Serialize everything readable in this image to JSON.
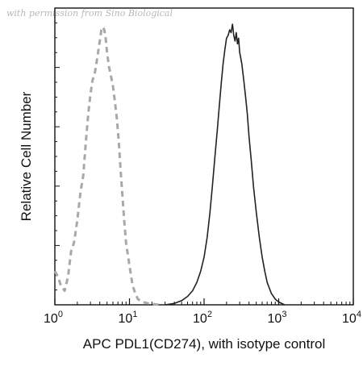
{
  "watermark": "with permission from Sino Biological",
  "chart_data": {
    "type": "line",
    "xlabel": "APC PDL1(CD274), with isotype control",
    "ylabel": "Relative Cell Number",
    "x_scale": "log",
    "xlim": [
      1,
      10000
    ],
    "ylim": [
      0,
      1
    ],
    "x_ticks": [
      {
        "base": "10",
        "exp": "0",
        "value": 1
      },
      {
        "base": "10",
        "exp": "1",
        "value": 10
      },
      {
        "base": "10",
        "exp": "2",
        "value": 100
      },
      {
        "base": "10",
        "exp": "3",
        "value": 1000
      },
      {
        "base": "10",
        "exp": "4",
        "value": 10000
      }
    ],
    "grid": false,
    "legend": "none",
    "series": [
      {
        "style": "dashed",
        "color": "#a8a8a8",
        "x": [
          1.0,
          1.1,
          1.2,
          1.35,
          1.5,
          1.65,
          1.8,
          2.0,
          2.2,
          2.4,
          2.6,
          2.8,
          3.0,
          3.2,
          3.4,
          3.6,
          3.8,
          4.0,
          4.2,
          4.4,
          4.6,
          4.8,
          5.0,
          5.3,
          5.6,
          6.0,
          6.4,
          6.8,
          7.2,
          7.6,
          8.0,
          8.5,
          9.0,
          10.0,
          11.0,
          12.0,
          13.0,
          15.0,
          18.0,
          25.0
        ],
        "y": [
          0.12,
          0.1,
          0.07,
          0.05,
          0.1,
          0.19,
          0.22,
          0.3,
          0.4,
          0.46,
          0.58,
          0.68,
          0.75,
          0.8,
          0.82,
          0.86,
          0.9,
          0.94,
          0.98,
          0.99,
          0.98,
          0.95,
          0.9,
          0.85,
          0.82,
          0.78,
          0.72,
          0.66,
          0.58,
          0.48,
          0.4,
          0.3,
          0.22,
          0.14,
          0.07,
          0.04,
          0.02,
          0.01,
          0.005,
          0.0
        ]
      },
      {
        "style": "solid",
        "color": "#222222",
        "x": [
          30,
          40,
          50,
          60,
          70,
          80,
          90,
          100,
          110,
          120,
          130,
          140,
          150,
          160,
          170,
          180,
          190,
          200,
          210,
          220,
          230,
          240,
          250,
          260,
          270,
          280,
          290,
          300,
          320,
          340,
          360,
          380,
          400,
          430,
          460,
          500,
          550,
          600,
          650,
          700,
          800,
          900,
          1000,
          1200
        ],
        "y": [
          0.0,
          0.005,
          0.015,
          0.03,
          0.05,
          0.08,
          0.12,
          0.17,
          0.24,
          0.33,
          0.43,
          0.53,
          0.62,
          0.71,
          0.79,
          0.86,
          0.91,
          0.95,
          0.96,
          0.98,
          0.97,
          1.0,
          0.96,
          0.94,
          0.97,
          0.93,
          0.95,
          0.9,
          0.86,
          0.8,
          0.74,
          0.68,
          0.6,
          0.51,
          0.42,
          0.33,
          0.24,
          0.17,
          0.12,
          0.08,
          0.04,
          0.02,
          0.01,
          0.0
        ]
      }
    ]
  }
}
